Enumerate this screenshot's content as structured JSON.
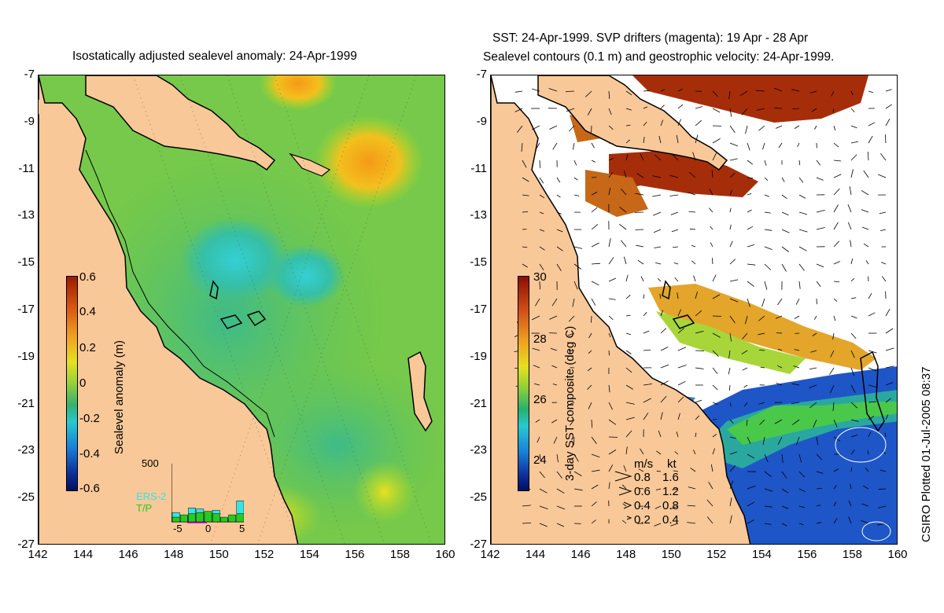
{
  "left_panel": {
    "title": "Isostatically adjusted sealevel anomaly: 24-Apr-1999",
    "colorbar_label": "Sealevel anomaly (m)",
    "colorbar_ticks": [
      "0.6",
      "0.4",
      "0.2",
      "0",
      "-0.2",
      "-0.4",
      "-0.6"
    ],
    "inset": {
      "ymax_label": "500",
      "x_ticks": [
        "-5",
        "0",
        "5"
      ],
      "series": [
        "ERS-2",
        "T/P"
      ],
      "series_colors": [
        "#33e6e6",
        "#22cc22"
      ],
      "ers2_counts": [
        80,
        50,
        120,
        110,
        60,
        100,
        30,
        20,
        180
      ],
      "tp_counts": [
        40,
        60,
        70,
        80,
        90,
        70,
        40,
        60,
        70
      ]
    }
  },
  "right_panel": {
    "title_line1": "SST: 24-Apr-1999. SVP drifters (magenta): 19 Apr - 28 Apr",
    "title_line2": "Sealevel contours (0.1 m) and geostrophic velocity: 24-Apr-1999.",
    "colorbar_label": "3-day SST composite (deg C)",
    "colorbar_ticks": [
      "30",
      "28",
      "26",
      "24"
    ],
    "velocity_legend": {
      "header_ms": "m/s",
      "header_kt": "kt",
      "rows": [
        {
          "ms": "0.8",
          "kt": "1.6"
        },
        {
          "ms": "0.6",
          "kt": "1.2"
        },
        {
          "ms": "0.4",
          "kt": "0.8"
        },
        {
          "ms": "0.2",
          "kt": "0.4"
        }
      ]
    }
  },
  "axes": {
    "y_ticks": [
      "-7",
      "-9",
      "-11",
      "-13",
      "-15",
      "-17",
      "-19",
      "-21",
      "-23",
      "-25",
      "-27"
    ],
    "x_ticks": [
      "142",
      "144",
      "146",
      "148",
      "150",
      "152",
      "154",
      "156",
      "158",
      "160"
    ]
  },
  "credit": "CSIRO Plotted 01-Jul-2005 08:37",
  "colors": {
    "land": "#f9c898",
    "sea_anomaly_base": "#7ccb3c",
    "sea_anomaly_low": "#2db89e",
    "sea_anomaly_high": "#f2a21a",
    "sst_warm": "#a62d0a",
    "sst_mid": "#e3a52a",
    "sst_cool": "#1e56c8"
  }
}
